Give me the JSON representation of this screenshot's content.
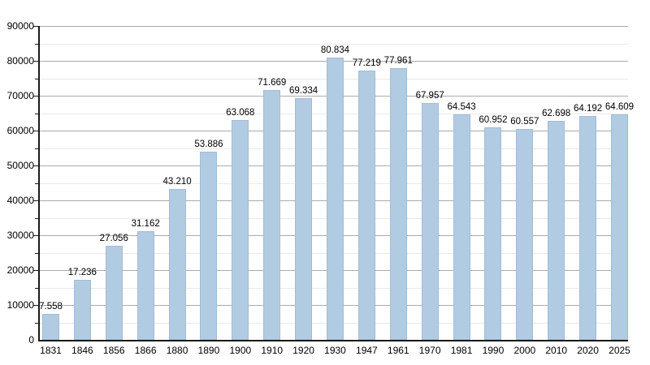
{
  "chart_data": {
    "type": "bar",
    "title": "",
    "xlabel": "",
    "ylabel": "",
    "categories": [
      "1831",
      "1846",
      "1856",
      "1866",
      "1880",
      "1890",
      "1900",
      "1910",
      "1920",
      "1930",
      "1947",
      "1961",
      "1970",
      "1981",
      "1990",
      "2000",
      "2010",
      "2020",
      "2025"
    ],
    "values": [
      7558,
      17236,
      27056,
      31162,
      43210,
      53886,
      63068,
      71669,
      69334,
      80834,
      77219,
      77961,
      67957,
      64543,
      60952,
      60557,
      62698,
      64192,
      64609
    ],
    "bar_labels": [
      "7.558",
      "17.236",
      "27.056",
      "31.162",
      "43.210",
      "53.886",
      "63.068",
      "71.669",
      "69.334",
      "80.834",
      "77.219",
      "77.961",
      "67.957",
      "64.543",
      "60.952",
      "60.557",
      "62.698",
      "64.192",
      "64.609"
    ],
    "ylim": [
      0,
      90000
    ],
    "y_major_step": 10000,
    "y_minor_step": 5000,
    "y_tick_labels": [
      "0",
      "10000",
      "20000",
      "30000",
      "40000",
      "50000",
      "60000",
      "70000",
      "80000",
      "90000"
    ],
    "grid": true,
    "legend_position": "none",
    "colors": {
      "bar_fill": "#b1cbe2",
      "bar_border": "#a2bcd5",
      "grid_major": "#ababab",
      "grid_minor": "#e9e9e9",
      "axis": "#1a1a1a",
      "text": "#000000",
      "background": "#ffffff"
    }
  }
}
